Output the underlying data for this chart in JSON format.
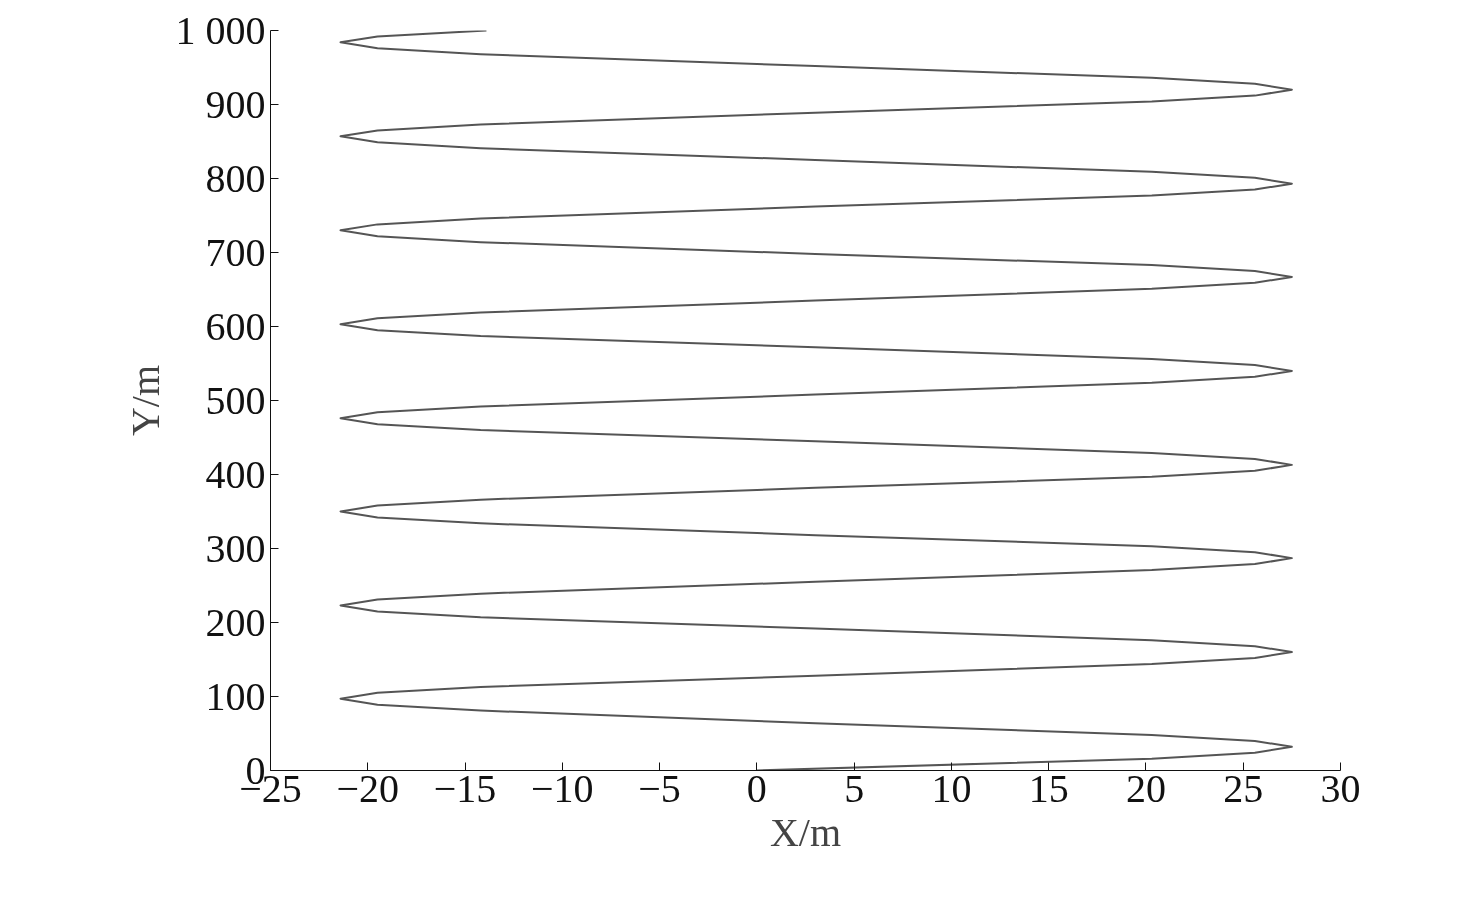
{
  "chart_data": {
    "type": "line",
    "xlabel": "X/m",
    "ylabel": "Y/m",
    "x": [
      0,
      20.3,
      25.6,
      27.5,
      25.6,
      20.3,
      3.0,
      -14.2,
      -19.5,
      -21.4,
      -19.5,
      -14.2,
      3.0,
      20.3,
      25.6,
      27.5,
      25.6,
      20.3,
      3.0,
      -14.2,
      -19.5,
      -21.4,
      -19.5,
      -14.2,
      3.0,
      20.3,
      25.6,
      27.5,
      25.6,
      20.3,
      3.0,
      -14.2,
      -19.5,
      -21.4,
      -19.5,
      -14.2,
      3.0,
      20.3,
      25.6,
      27.5,
      25.6,
      20.3,
      3.0,
      -14.2,
      -19.5,
      -21.4,
      -19.5,
      -14.2,
      3.0,
      20.3,
      25.6,
      27.5,
      25.6,
      20.3,
      3.0,
      -14.2,
      -19.5,
      -21.4,
      -19.5,
      -14.2,
      3.0,
      20.3,
      25.6,
      27.5,
      25.6,
      20.3,
      3.0,
      -14.2,
      -19.5,
      -21.4,
      -19.5,
      -14.2,
      3.0,
      20.3,
      25.6,
      27.5,
      25.6,
      20.3,
      3.0,
      -14.2,
      -19.5,
      -21.4,
      -19.5,
      -14.2,
      3.0,
      20.3,
      25.6,
      27.5,
      25.6,
      20.3,
      3.0,
      -14.2,
      -19.5,
      -21.4,
      -19.5,
      -13.9
    ],
    "series": [
      {
        "color": "#555555",
        "values": [
          0,
          16,
          24,
          32,
          40,
          48,
          64,
          81,
          89,
          97,
          105,
          113,
          128,
          144,
          152,
          160,
          168,
          176,
          192,
          207,
          215,
          223,
          231,
          239,
          255,
          271,
          279,
          287,
          295,
          303,
          318,
          334,
          342,
          350,
          358,
          366,
          382,
          397,
          405,
          413,
          421,
          429,
          445,
          460,
          468,
          476,
          484,
          492,
          508,
          524,
          532,
          540,
          548,
          556,
          572,
          587,
          595,
          603,
          611,
          619,
          635,
          651,
          659,
          667,
          675,
          683,
          698,
          714,
          722,
          730,
          738,
          746,
          762,
          777,
          785,
          793,
          801,
          809,
          825,
          841,
          849,
          857,
          865,
          873,
          889,
          904,
          912,
          920,
          928,
          936,
          952,
          968,
          976,
          984,
          992,
          1000
        ]
      }
    ],
    "xlim": [
      -25,
      30
    ],
    "ylim": [
      0,
      1000
    ],
    "xticks": [
      {
        "value": -25,
        "label": "−25"
      },
      {
        "value": -20,
        "label": "−20"
      },
      {
        "value": -15,
        "label": "−15"
      },
      {
        "value": -10,
        "label": "−10"
      },
      {
        "value": -5,
        "label": "−5"
      },
      0,
      5,
      10,
      15,
      20,
      25,
      30
    ],
    "yticks": [
      0,
      100,
      200,
      300,
      400,
      500,
      600,
      700,
      800,
      900,
      {
        "value": 1000,
        "label": "1 000"
      }
    ],
    "grid": false,
    "marker": "none",
    "line_style": "solid"
  }
}
